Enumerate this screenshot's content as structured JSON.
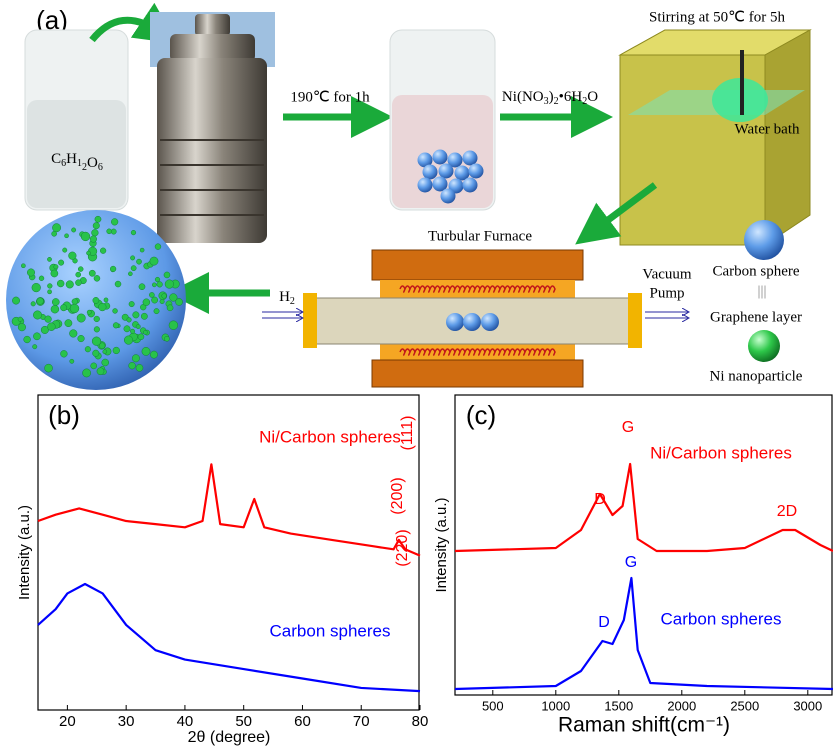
{
  "schematic": {
    "panel_label": "(a)",
    "glucose": "C6H12O6",
    "step1": "190℃ for 1h",
    "step2": "Ni(NO3)2•6H2O",
    "stirring": "Stirring at 50℃ for 5h",
    "water_bath": "Water bath",
    "furnace": "Turbular Furnace",
    "gas": "H2",
    "vacuum": "Vacuum",
    "pump": "Pump",
    "legend": {
      "carbon_sphere": "Carbon sphere",
      "separator": "|||",
      "graphene": "Graphene layer",
      "ni": "Ni nanoparticle"
    }
  },
  "chart_data": [
    {
      "type": "line",
      "panel_label": "(b)",
      "xlabel": "2θ (degree)",
      "ylabel": "Intensity (a.u.)",
      "xlim": [
        15,
        80
      ],
      "xticks": [
        20,
        30,
        40,
        50,
        60,
        70,
        80
      ],
      "ylim": [
        0,
        100
      ],
      "series": [
        {
          "name": "Ni/Carbon spheres",
          "color": "#ff0000",
          "x": [
            15,
            18,
            22,
            26,
            30,
            35,
            40,
            43,
            44.5,
            46,
            50,
            51.8,
            53.5,
            58,
            65,
            72,
            75.5,
            76.4,
            77.5,
            80
          ],
          "values": [
            60,
            62,
            64,
            62,
            60,
            59,
            58,
            60,
            78,
            59,
            58,
            67,
            58,
            56,
            54,
            52,
            51,
            54,
            51,
            49
          ]
        },
        {
          "name": "Carbon spheres",
          "color": "#0000ff",
          "x": [
            15,
            18,
            20,
            23,
            26,
            30,
            35,
            40,
            50,
            60,
            70,
            80
          ],
          "values": [
            27,
            32,
            37,
            40,
            37,
            27,
            19,
            16,
            13,
            10,
            7,
            6
          ]
        }
      ],
      "annotations": [
        {
          "text": "(111)",
          "color": "#ff0000"
        },
        {
          "text": "(200)",
          "color": "#ff0000"
        },
        {
          "text": "(220)",
          "color": "#ff0000"
        }
      ]
    },
    {
      "type": "line",
      "panel_label": "(c)",
      "xlabel": "Raman  shift(cm⁻¹)",
      "ylabel": "Intensity (a.u.)",
      "xlim": [
        200,
        3200
      ],
      "xticks": [
        500,
        1000,
        1500,
        2000,
        2500,
        3000
      ],
      "ylim": [
        0,
        100
      ],
      "series": [
        {
          "name": "Ni/Carbon spheres",
          "color": "#ff0000",
          "x": [
            200,
            1000,
            1200,
            1350,
            1450,
            1530,
            1590,
            1650,
            1800,
            2200,
            2500,
            2800,
            2900,
            3100,
            3200
          ],
          "values": [
            48,
            49,
            55,
            67,
            60,
            63,
            77,
            52,
            48,
            48,
            49,
            55,
            55,
            50,
            48
          ]
        },
        {
          "name": "Carbon spheres",
          "color": "#0000ff",
          "x": [
            200,
            1000,
            1200,
            1370,
            1450,
            1540,
            1600,
            1650,
            1750,
            2200,
            3200
          ],
          "values": [
            2,
            3,
            8,
            18,
            17,
            25,
            39,
            15,
            4,
            3,
            2
          ]
        }
      ],
      "annotations": [
        {
          "text": "D",
          "color": "#ff0000"
        },
        {
          "text": "G",
          "color": "#ff0000"
        },
        {
          "text": "2D",
          "color": "#ff0000"
        },
        {
          "text": "D",
          "color": "#0000ff"
        },
        {
          "text": "G",
          "color": "#0000ff"
        }
      ]
    }
  ]
}
